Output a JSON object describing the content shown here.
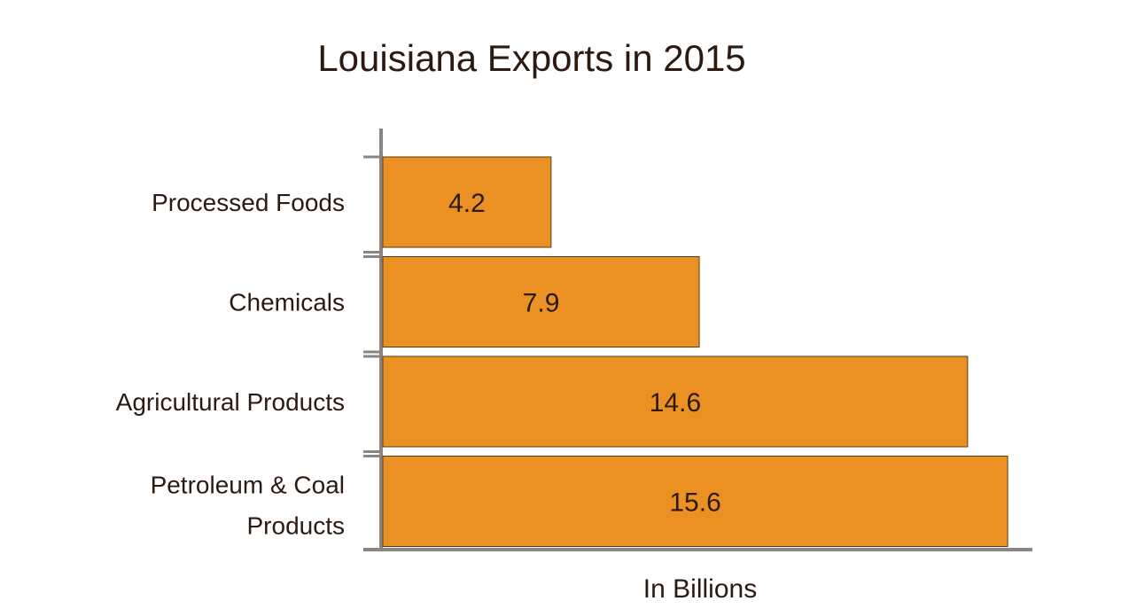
{
  "chart_data": {
    "type": "bar",
    "orientation": "horizontal",
    "title": "Louisiana Exports in 2015",
    "xlabel": "In Billions",
    "ylabel": "",
    "categories": [
      "Processed Foods",
      "Chemicals",
      "Agricultural Products",
      "Petroleum & Coal Products"
    ],
    "values": [
      4.2,
      7.9,
      14.6,
      15.6
    ],
    "data_labels": [
      "4.2",
      "7.9",
      "14.6",
      "15.6"
    ],
    "xlim": [
      0,
      16.3
    ],
    "grid": false,
    "legend": "none",
    "bar_color": "#eb9124",
    "bar_edge_color": "#5a3a1e",
    "axis_color": "#8a8582"
  }
}
